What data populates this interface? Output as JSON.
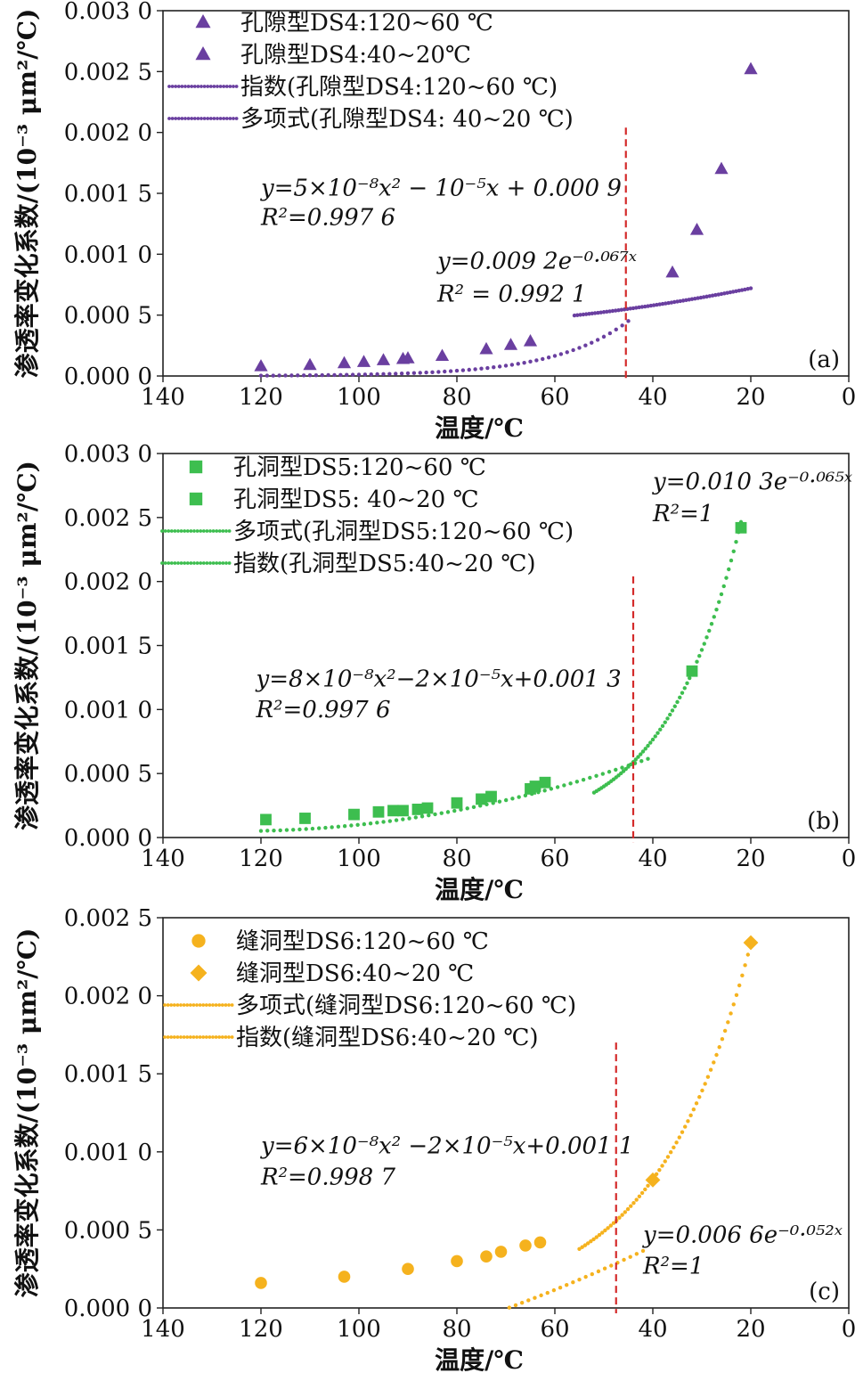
{
  "chart_data": [
    {
      "type": "scatter",
      "panel_label": "(a)",
      "xlabel": "温度/℃",
      "ylabel": "渗透率变化系数/(10⁻³ μm²/℃)",
      "xlim": [
        140,
        0
      ],
      "ylim": [
        0.0,
        0.003
      ],
      "x_ticks": [
        "140",
        "120",
        "100",
        "80",
        "60",
        "40",
        "20",
        "0"
      ],
      "y_ticks": [
        "0.000 0",
        "0.000 5",
        "0.001 0",
        "0.001 5",
        "0.002 0",
        "0.002 5",
        "0.003 0"
      ],
      "divider_x": 45.5,
      "marker": "triangle",
      "color": "#6A3FA0",
      "legend": [
        {
          "label": "孔隙型DS4:120~60 ℃",
          "kind": "marker"
        },
        {
          "label": "孔隙型DS4:40~20℃",
          "kind": "marker"
        },
        {
          "label": "指数(孔隙型DS4:120~60 ℃)",
          "kind": "line"
        },
        {
          "label": "多项式(孔隙型DS4: 40~20 ℃)",
          "kind": "line"
        }
      ],
      "series": [
        {
          "name": "孔隙型DS4:120~60 ℃",
          "x": [
            120,
            110,
            103,
            99,
            95,
            91,
            90,
            83,
            74,
            69,
            65
          ],
          "y": [
            8e-05,
            9e-05,
            0.000105,
            0.000115,
            0.00013,
            0.00014,
            0.000145,
            0.000165,
            0.00022,
            0.000255,
            0.000285
          ]
        },
        {
          "name": "孔隙型DS4:40~20℃",
          "x": [
            36,
            31,
            26,
            20
          ],
          "y": [
            0.00085,
            0.0012,
            0.0017,
            0.00252
          ]
        }
      ],
      "fits": [
        {
          "kind": "exp",
          "a": 0.0092,
          "b": -0.067,
          "x_range": [
            120,
            45
          ]
        },
        {
          "kind": "poly",
          "c2": 5e-08,
          "c1": -1e-05,
          "c0": 0.0009,
          "x_range": [
            56,
            20
          ]
        }
      ],
      "annotations": [
        {
          "t": "y=5×10⁻⁸x² − 10⁻⁵x + 0.000 9",
          "x": 120,
          "y": 0.00148
        },
        {
          "t": "R²=0.997 6",
          "x": 120,
          "y": 0.00124
        },
        {
          "t": "y=0.009 2e⁻⁰·⁰⁶⁷ˣ",
          "x": 84,
          "y": 0.00088
        },
        {
          "t": "R² = 0.992 1",
          "x": 84,
          "y": 0.00061
        }
      ]
    },
    {
      "type": "scatter",
      "panel_label": "(b)",
      "xlabel": "温度/℃",
      "ylabel": "渗透率变化系数/(10⁻³ μm²/℃)",
      "xlim": [
        140,
        0
      ],
      "ylim": [
        0.0,
        0.003
      ],
      "x_ticks": [
        "140",
        "120",
        "100",
        "80",
        "60",
        "40",
        "20",
        "0"
      ],
      "y_ticks": [
        "0.000 0",
        "0.000 5",
        "0.001 0",
        "0.001 5",
        "0.002 0",
        "0.002 5",
        "0.003 0"
      ],
      "divider_x": 44,
      "marker": "square",
      "color": "#3DBE4F",
      "legend": [
        {
          "label": "孔洞型DS5:120~60 ℃",
          "kind": "marker"
        },
        {
          "label": "孔洞型DS5: 40~20 ℃",
          "kind": "marker"
        },
        {
          "label": "多项式(孔洞型DS5:120~60 ℃)",
          "kind": "line"
        },
        {
          "label": "指数(孔洞型DS5:40~20 ℃)",
          "kind": "line"
        }
      ],
      "series": [
        {
          "name": "孔洞型DS5:120~60 ℃",
          "x": [
            119,
            111,
            101,
            96,
            93,
            91,
            88,
            86,
            80,
            75,
            73,
            65,
            64,
            62
          ],
          "y": [
            0.00014,
            0.00015,
            0.00018,
            0.0002,
            0.00021,
            0.00021,
            0.00022,
            0.00023,
            0.00027,
            0.0003,
            0.00032,
            0.00038,
            0.0004,
            0.00043
          ]
        },
        {
          "name": "孔洞型DS5: 40~20 ℃",
          "x": [
            32,
            22
          ],
          "y": [
            0.0013,
            0.00242
          ]
        }
      ],
      "fits": [
        {
          "kind": "poly",
          "c2": 8e-08,
          "c1": -2e-05,
          "c0": 0.0013,
          "x_range": [
            120,
            41
          ]
        },
        {
          "kind": "exp",
          "a": 0.0103,
          "b": -0.065,
          "x_range": [
            52,
            22
          ]
        }
      ],
      "annotations": [
        {
          "t": "y=0.010 3e⁻⁰·⁰⁶⁵ˣ",
          "x": 40,
          "y": 0.00272
        },
        {
          "t": "R²=1",
          "x": 40,
          "y": 0.00247
        },
        {
          "t": "y=8×10⁻⁸x²−2×10⁻⁵x+0.001 3",
          "x": 121,
          "y": 0.00118
        },
        {
          "t": "R²=0.997 6",
          "x": 121,
          "y": 0.00094
        }
      ]
    },
    {
      "type": "scatter",
      "panel_label": "(c)",
      "xlabel": "温度/℃",
      "ylabel": "渗透率变化系数/(10⁻³ μm²/℃)",
      "xlim": [
        140,
        0
      ],
      "ylim": [
        0.0,
        0.0025
      ],
      "x_ticks": [
        "140",
        "120",
        "100",
        "80",
        "60",
        "40",
        "20",
        "0"
      ],
      "y_ticks": [
        "0.000 0",
        "0.000 5",
        "0.001 0",
        "0.001 5",
        "0.002 0",
        "0.002 5"
      ],
      "divider_x": 47.5,
      "marker": "circle",
      "color": "#F5B21E",
      "legend": [
        {
          "label": "缝洞型DS6:120~60 ℃",
          "kind": "circle"
        },
        {
          "label": "缝洞型DS6:40~20 ℃",
          "kind": "diamond"
        },
        {
          "label": "多项式(缝洞型DS6:120~60 ℃)",
          "kind": "line"
        },
        {
          "label": "指数(缝洞型DS6:40~20 ℃)",
          "kind": "line"
        }
      ],
      "series": [
        {
          "name": "缝洞型DS6:120~60 ℃",
          "marker": "circle",
          "x": [
            120,
            103,
            90,
            80,
            74,
            71,
            66,
            63
          ],
          "y": [
            0.00016,
            0.0002,
            0.00025,
            0.0003,
            0.00033,
            0.00036,
            0.0004,
            0.00042
          ]
        },
        {
          "name": "缝洞型DS6:40~20 ℃",
          "marker": "diamond",
          "x": [
            40,
            20
          ],
          "y": [
            0.00082,
            0.00234
          ]
        }
      ],
      "fits": [
        {
          "kind": "poly",
          "c2": 6e-08,
          "c1": -2e-05,
          "c0": 0.0011,
          "x_range": [
            120,
            42
          ]
        },
        {
          "kind": "exp",
          "a": 0.0066,
          "b": -0.052,
          "x_range": [
            55,
            20
          ]
        }
      ],
      "annotations": [
        {
          "t": "y=6×10⁻⁸x² −2×10⁻⁵x+0.001 1",
          "x": 120,
          "y": 0.00099
        },
        {
          "t": "R²=0.998 7",
          "x": 120,
          "y": 0.00079
        },
        {
          "t": "y=0.006 6e⁻⁰·⁰⁵²ˣ",
          "x": 42,
          "y": 0.00042
        },
        {
          "t": "R²=1",
          "x": 42,
          "y": 0.00022
        }
      ]
    }
  ]
}
